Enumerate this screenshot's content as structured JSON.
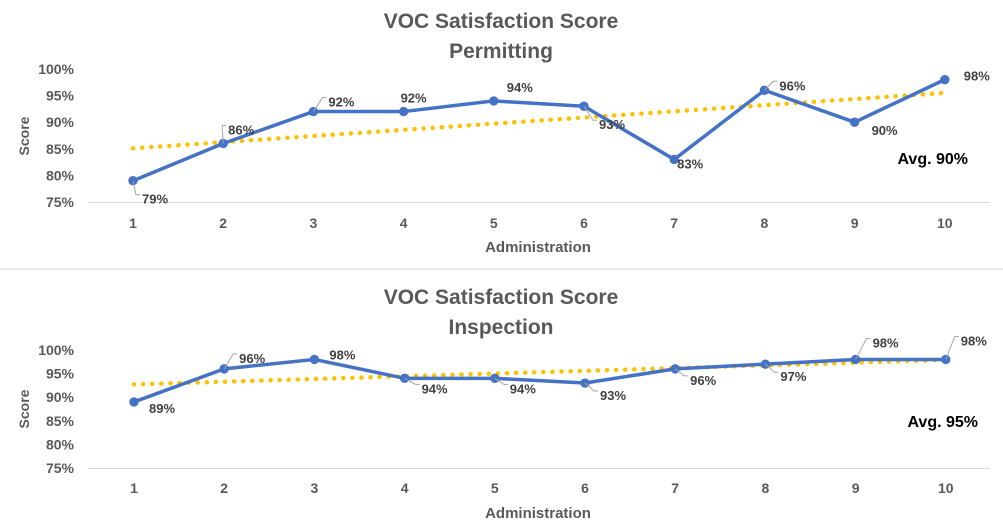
{
  "chart_data": [
    {
      "type": "line",
      "title": "VOC Satisfaction Score",
      "subtitle": "Permitting",
      "xlabel": "Administration",
      "ylabel": "Score",
      "categories": [
        "1",
        "2",
        "3",
        "4",
        "5",
        "6",
        "7",
        "8",
        "9",
        "10"
      ],
      "ylim": [
        75,
        100
      ],
      "y_ticks": [
        "75%",
        "80%",
        "85%",
        "90%",
        "95%",
        "100%"
      ],
      "series": [
        {
          "values": [
            79,
            86,
            92,
            92,
            94,
            93,
            83,
            96,
            90,
            98
          ],
          "data_labels": [
            "79%",
            "86%",
            "92%",
            "92%",
            "94%",
            "93%",
            "83%",
            "96%",
            "90%",
            "98%"
          ],
          "color": "#4472C4"
        }
      ],
      "trendline": {
        "type": "linear",
        "style": "dotted",
        "color": "#FFC000"
      },
      "annotation": "Avg. 90%",
      "grid": false
    },
    {
      "type": "line",
      "title": "VOC Satisfaction Score",
      "subtitle": "Inspection",
      "xlabel": "Administration",
      "ylabel": "Score",
      "categories": [
        "1",
        "2",
        "3",
        "4",
        "5",
        "6",
        "7",
        "8",
        "9",
        "10"
      ],
      "ylim": [
        75,
        100
      ],
      "y_ticks": [
        "75%",
        "80%",
        "85%",
        "90%",
        "95%",
        "100%"
      ],
      "series": [
        {
          "values": [
            89,
            96,
            98,
            94,
            94,
            93,
            96,
            97,
            98,
            98
          ],
          "data_labels": [
            "89%",
            "96%",
            "98%",
            "94%",
            "94%",
            "93%",
            "96%",
            "97%",
            "98%",
            "98%"
          ],
          "color": "#4472C4"
        }
      ],
      "trendline": {
        "type": "linear",
        "style": "dotted",
        "color": "#FFC000"
      },
      "annotation": "Avg. 95%",
      "grid": false
    }
  ]
}
